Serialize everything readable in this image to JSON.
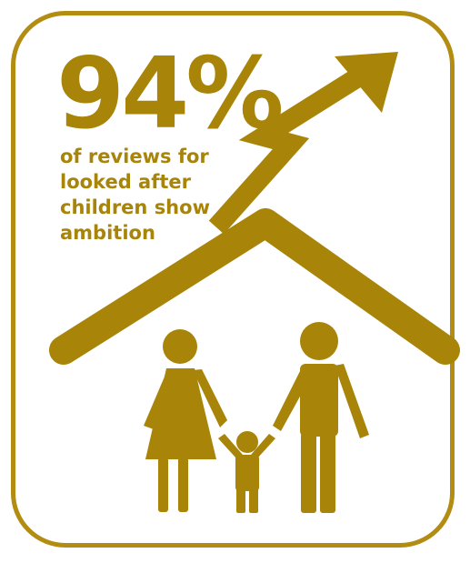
{
  "infographic": {
    "stat_value": "94%",
    "caption_lines": [
      "of reviews for",
      "looked after",
      "children show",
      "ambition"
    ]
  },
  "colors": {
    "gold": "#a88408",
    "border": "#b38c12",
    "background": "#ffffff"
  },
  "icons": {
    "arrow": "rising-arrow-icon",
    "roof": "house-roof-icon",
    "family": "family-icon"
  }
}
